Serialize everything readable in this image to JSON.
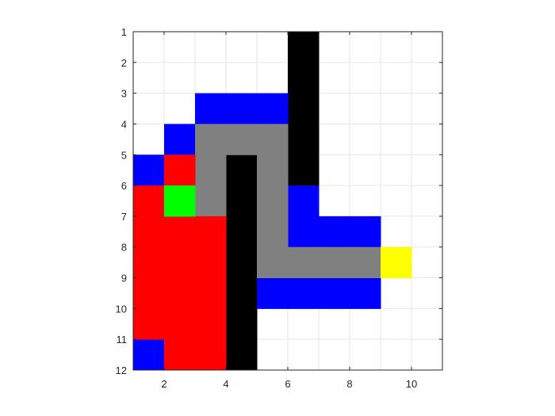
{
  "chart_data": {
    "type": "heatmap",
    "title": "",
    "xlabel": "",
    "ylabel": "",
    "xlim": [
      1,
      11
    ],
    "ylim": [
      12,
      1
    ],
    "y_reversed": true,
    "grid": true,
    "x_ticks": [
      2,
      4,
      6,
      8,
      10
    ],
    "y_ticks": [
      1,
      2,
      3,
      4,
      5,
      6,
      7,
      8,
      9,
      10,
      11,
      12
    ],
    "palette": {
      "wall": "#000000",
      "closed": "#ff0000",
      "open": "#0000ff",
      "path": "#808080",
      "start": "#00ff00",
      "goal": "#ffff00",
      "empty": "#ffffff",
      "grid": "#e6e6e6",
      "axis": "#262626"
    },
    "cells": [
      {
        "x": 6,
        "y": 1,
        "value": "wall"
      },
      {
        "x": 6,
        "y": 2,
        "value": "wall"
      },
      {
        "x": 6,
        "y": 3,
        "value": "wall"
      },
      {
        "x": 6,
        "y": 4,
        "value": "wall"
      },
      {
        "x": 6,
        "y": 5,
        "value": "wall"
      },
      {
        "x": 4,
        "y": 5,
        "value": "wall"
      },
      {
        "x": 4,
        "y": 6,
        "value": "wall"
      },
      {
        "x": 4,
        "y": 7,
        "value": "wall"
      },
      {
        "x": 4,
        "y": 8,
        "value": "wall"
      },
      {
        "x": 4,
        "y": 9,
        "value": "wall"
      },
      {
        "x": 4,
        "y": 10,
        "value": "wall"
      },
      {
        "x": 4,
        "y": 11,
        "value": "wall"
      },
      {
        "x": 3,
        "y": 3,
        "value": "open"
      },
      {
        "x": 4,
        "y": 3,
        "value": "open"
      },
      {
        "x": 5,
        "y": 3,
        "value": "open"
      },
      {
        "x": 2,
        "y": 4,
        "value": "open"
      },
      {
        "x": 1,
        "y": 5,
        "value": "open"
      },
      {
        "x": 6,
        "y": 6,
        "value": "open"
      },
      {
        "x": 6,
        "y": 7,
        "value": "open"
      },
      {
        "x": 7,
        "y": 7,
        "value": "open"
      },
      {
        "x": 8,
        "y": 7,
        "value": "open"
      },
      {
        "x": 5,
        "y": 9,
        "value": "open"
      },
      {
        "x": 6,
        "y": 9,
        "value": "open"
      },
      {
        "x": 7,
        "y": 9,
        "value": "open"
      },
      {
        "x": 8,
        "y": 9,
        "value": "open"
      },
      {
        "x": 1,
        "y": 11,
        "value": "open"
      },
      {
        "x": 3,
        "y": 4,
        "value": "path"
      },
      {
        "x": 4,
        "y": 4,
        "value": "path"
      },
      {
        "x": 5,
        "y": 4,
        "value": "path"
      },
      {
        "x": 3,
        "y": 5,
        "value": "path"
      },
      {
        "x": 5,
        "y": 5,
        "value": "path"
      },
      {
        "x": 3,
        "y": 6,
        "value": "path"
      },
      {
        "x": 5,
        "y": 6,
        "value": "path"
      },
      {
        "x": 5,
        "y": 7,
        "value": "path"
      },
      {
        "x": 5,
        "y": 8,
        "value": "path"
      },
      {
        "x": 6,
        "y": 8,
        "value": "path"
      },
      {
        "x": 7,
        "y": 8,
        "value": "path"
      },
      {
        "x": 8,
        "y": 8,
        "value": "path"
      },
      {
        "x": 2,
        "y": 5,
        "value": "closed"
      },
      {
        "x": 1,
        "y": 6,
        "value": "closed"
      },
      {
        "x": 1,
        "y": 7,
        "value": "closed"
      },
      {
        "x": 2,
        "y": 7,
        "value": "closed"
      },
      {
        "x": 3,
        "y": 7,
        "value": "closed"
      },
      {
        "x": 1,
        "y": 8,
        "value": "closed"
      },
      {
        "x": 2,
        "y": 8,
        "value": "closed"
      },
      {
        "x": 3,
        "y": 8,
        "value": "closed"
      },
      {
        "x": 1,
        "y": 9,
        "value": "closed"
      },
      {
        "x": 2,
        "y": 9,
        "value": "closed"
      },
      {
        "x": 3,
        "y": 9,
        "value": "closed"
      },
      {
        "x": 1,
        "y": 10,
        "value": "closed"
      },
      {
        "x": 2,
        "y": 10,
        "value": "closed"
      },
      {
        "x": 3,
        "y": 10,
        "value": "closed"
      },
      {
        "x": 2,
        "y": 11,
        "value": "closed"
      },
      {
        "x": 3,
        "y": 11,
        "value": "closed"
      },
      {
        "x": 2,
        "y": 6,
        "value": "start"
      },
      {
        "x": 9,
        "y": 8,
        "value": "goal"
      }
    ]
  }
}
